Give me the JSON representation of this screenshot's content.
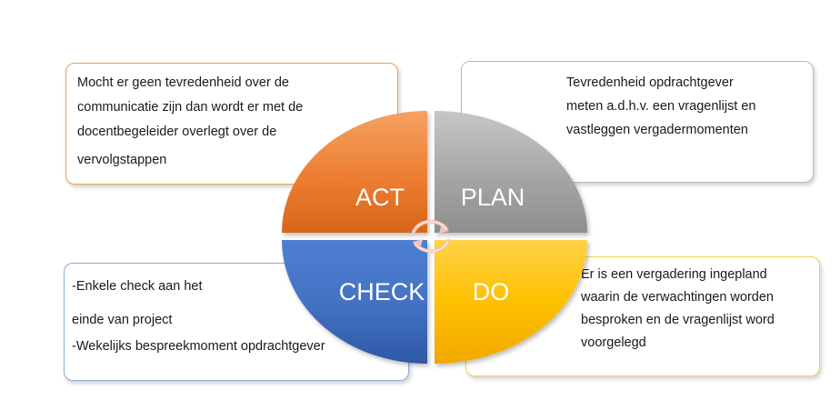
{
  "diagram": {
    "quadrants": {
      "act": {
        "label": "ACT",
        "color": "#ed7d31"
      },
      "plan": {
        "label": "PLAN",
        "color": "#a5a5a5"
      },
      "check": {
        "label": "CHECK",
        "color": "#4472c4"
      },
      "do": {
        "label": "DO",
        "color": "#ffc000"
      }
    },
    "cycle_icon": "cycle-arrows-icon"
  },
  "notes": {
    "act": {
      "lines": [
        "Mocht er geen tevredenheid  over de",
        "communicatie zijn dan wordt er met de",
        "docentbegeleider  overlegt over de",
        "vervolgstappen"
      ]
    },
    "plan": {
      "lines": [
        "Tevredenheid  opdrachtgever",
        "meten a.d.h.v. een vragenlijst  en",
        "vastleggen vergadermomenten"
      ]
    },
    "check": {
      "lines": [
        "-Enkele check aan het",
        "einde van project",
        "-Wekelijks bespreekmoment  opdrachtgever"
      ]
    },
    "do": {
      "lines": [
        "Er is een vergadering  ingepland",
        "waarin de verwachtingen worden",
        "besproken en de vragenlijst word",
        "voorgelegd"
      ]
    }
  }
}
